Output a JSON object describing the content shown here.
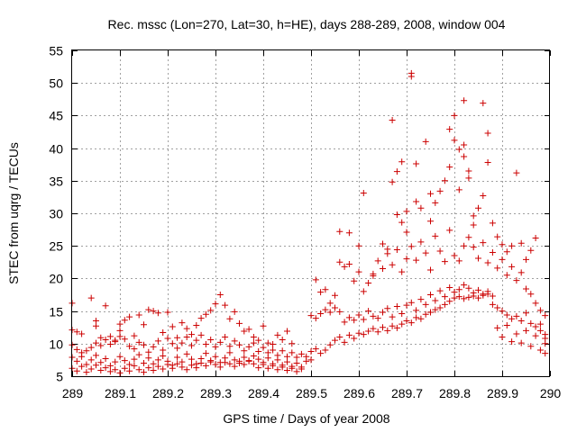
{
  "chart_data": {
    "type": "scatter",
    "title": "Rec. mssc (Lon=270, Lat=30, h=HE), days 288-289, 2008, window 004",
    "xlabel": "GPS time / Days of year 2008",
    "ylabel": "STEC from uqrg / TECUs",
    "xlim": [
      289,
      290
    ],
    "ylim": [
      5,
      55
    ],
    "x_ticks": [
      289,
      289.1,
      289.2,
      289.3,
      289.4,
      289.5,
      289.6,
      289.7,
      289.8,
      289.9,
      290
    ],
    "x_tick_labels": [
      "289",
      "289.1",
      "289.2",
      "289.3",
      "289.4",
      "289.5",
      "289.6",
      "289.7",
      "289.8",
      "289.9",
      "290"
    ],
    "y_ticks": [
      5,
      10,
      15,
      20,
      25,
      30,
      35,
      40,
      45,
      50,
      55
    ],
    "y_tick_labels": [
      "5",
      "10",
      "15",
      "20",
      "25",
      "30",
      "35",
      "40",
      "45",
      "50",
      "55"
    ],
    "grid": true,
    "marker": "+",
    "color": "#cc0000",
    "points": [
      [
        289.0,
        16.2
      ],
      [
        289.0,
        12.1
      ],
      [
        289.01,
        11.8
      ],
      [
        289.02,
        11.5
      ],
      [
        289.04,
        17.0
      ],
      [
        289.05,
        13.5
      ],
      [
        289.05,
        12.7
      ],
      [
        289.06,
        10.9
      ],
      [
        289.07,
        15.8
      ],
      [
        289.08,
        11.1
      ],
      [
        289.09,
        10.5
      ],
      [
        289.1,
        13.0
      ],
      [
        289.1,
        12.0
      ],
      [
        289.11,
        13.6
      ],
      [
        289.12,
        14.1
      ],
      [
        289.13,
        11.2
      ],
      [
        289.14,
        14.4
      ],
      [
        289.15,
        12.9
      ],
      [
        289.16,
        15.2
      ],
      [
        289.17,
        15.0
      ],
      [
        289.18,
        14.7
      ],
      [
        289.19,
        11.7
      ],
      [
        289.2,
        14.8
      ],
      [
        289.21,
        12.6
      ],
      [
        289.22,
        10.9
      ],
      [
        289.23,
        13.2
      ],
      [
        289.24,
        12.3
      ],
      [
        289.25,
        11.4
      ],
      [
        289.26,
        12.8
      ],
      [
        289.27,
        13.9
      ],
      [
        289.28,
        14.5
      ],
      [
        289.29,
        15.1
      ],
      [
        289.3,
        16.1
      ],
      [
        289.31,
        17.5
      ],
      [
        289.32,
        15.9
      ],
      [
        289.33,
        13.8
      ],
      [
        289.34,
        14.9
      ],
      [
        289.35,
        13.1
      ],
      [
        289.36,
        11.9
      ],
      [
        289.37,
        12.2
      ],
      [
        289.38,
        11.0
      ],
      [
        289.39,
        10.5
      ],
      [
        289.4,
        12.7
      ],
      [
        289.41,
        10.1
      ],
      [
        289.42,
        9.9
      ],
      [
        289.43,
        11.3
      ],
      [
        289.44,
        10.6
      ],
      [
        289.45,
        11.9
      ],
      [
        289.46,
        10.0
      ],
      [
        289.0,
        9.8
      ],
      [
        289.01,
        9.1
      ],
      [
        289.02,
        8.6
      ],
      [
        289.03,
        8.9
      ],
      [
        289.04,
        9.4
      ],
      [
        289.05,
        10.1
      ],
      [
        289.06,
        9.7
      ],
      [
        289.07,
        10.6
      ],
      [
        289.08,
        9.9
      ],
      [
        289.09,
        10.3
      ],
      [
        289.1,
        11.1
      ],
      [
        289.11,
        10.7
      ],
      [
        289.12,
        9.6
      ],
      [
        289.13,
        9.2
      ],
      [
        289.14,
        10.2
      ],
      [
        289.15,
        9.8
      ],
      [
        289.16,
        8.7
      ],
      [
        289.17,
        9.5
      ],
      [
        289.18,
        10.4
      ],
      [
        289.19,
        9.0
      ],
      [
        289.2,
        10.8
      ],
      [
        289.21,
        10.0
      ],
      [
        289.22,
        9.3
      ],
      [
        289.23,
        10.1
      ],
      [
        289.24,
        11.0
      ],
      [
        289.25,
        9.7
      ],
      [
        289.26,
        10.5
      ],
      [
        289.27,
        11.3
      ],
      [
        289.28,
        9.9
      ],
      [
        289.29,
        10.6
      ],
      [
        289.3,
        9.5
      ],
      [
        289.31,
        10.2
      ],
      [
        289.32,
        11.0
      ],
      [
        289.33,
        9.6
      ],
      [
        289.34,
        10.4
      ],
      [
        289.35,
        9.8
      ],
      [
        289.36,
        8.9
      ],
      [
        289.37,
        9.5
      ],
      [
        289.38,
        10.1
      ],
      [
        289.39,
        8.8
      ],
      [
        289.4,
        9.4
      ],
      [
        289.41,
        8.6
      ],
      [
        289.42,
        9.0
      ],
      [
        289.43,
        8.2
      ],
      [
        289.44,
        8.9
      ],
      [
        289.45,
        8.0
      ],
      [
        289.46,
        8.6
      ],
      [
        289.47,
        7.9
      ],
      [
        289.48,
        8.4
      ],
      [
        289.0,
        7.9
      ],
      [
        289.01,
        7.3
      ],
      [
        289.02,
        8.0
      ],
      [
        289.03,
        6.8
      ],
      [
        289.04,
        7.5
      ],
      [
        289.05,
        8.2
      ],
      [
        289.06,
        7.1
      ],
      [
        289.07,
        7.7
      ],
      [
        289.08,
        6.6
      ],
      [
        289.09,
        7.2
      ],
      [
        289.1,
        8.0
      ],
      [
        289.11,
        7.4
      ],
      [
        289.12,
        6.8
      ],
      [
        289.13,
        7.6
      ],
      [
        289.14,
        8.3
      ],
      [
        289.15,
        7.0
      ],
      [
        289.16,
        7.8
      ],
      [
        289.17,
        6.9
      ],
      [
        289.18,
        7.5
      ],
      [
        289.19,
        8.1
      ],
      [
        289.2,
        7.3
      ],
      [
        289.21,
        6.7
      ],
      [
        289.22,
        7.9
      ],
      [
        289.23,
        7.2
      ],
      [
        289.24,
        8.4
      ],
      [
        289.25,
        7.6
      ],
      [
        289.26,
        6.9
      ],
      [
        289.27,
        7.7
      ],
      [
        289.28,
        8.5
      ],
      [
        289.29,
        7.4
      ],
      [
        289.3,
        8.0
      ],
      [
        289.31,
        7.1
      ],
      [
        289.32,
        7.8
      ],
      [
        289.33,
        8.6
      ],
      [
        289.34,
        7.5
      ],
      [
        289.35,
        7.0
      ],
      [
        289.36,
        7.9
      ],
      [
        289.37,
        7.3
      ],
      [
        289.38,
        8.1
      ],
      [
        289.39,
        7.6
      ],
      [
        289.4,
        7.1
      ],
      [
        289.41,
        7.8
      ],
      [
        289.42,
        6.9
      ],
      [
        289.43,
        7.5
      ],
      [
        289.44,
        6.7
      ],
      [
        289.45,
        7.2
      ],
      [
        289.46,
        6.5
      ],
      [
        289.47,
        7.0
      ],
      [
        289.48,
        6.4
      ],
      [
        289.49,
        7.3
      ],
      [
        289.0,
        6.2
      ],
      [
        289.01,
        5.8
      ],
      [
        289.02,
        6.5
      ],
      [
        289.03,
        5.6
      ],
      [
        289.04,
        6.1
      ],
      [
        289.05,
        6.7
      ],
      [
        289.06,
        5.9
      ],
      [
        289.07,
        6.3
      ],
      [
        289.08,
        5.7
      ],
      [
        289.09,
        6.0
      ],
      [
        289.1,
        5.5
      ],
      [
        289.11,
        6.2
      ],
      [
        289.12,
        5.8
      ],
      [
        289.13,
        6.6
      ],
      [
        289.14,
        6.0
      ],
      [
        289.15,
        5.6
      ],
      [
        289.16,
        6.3
      ],
      [
        289.17,
        5.9
      ],
      [
        289.18,
        6.5
      ],
      [
        289.19,
        6.1
      ],
      [
        289.2,
        6.8
      ],
      [
        289.21,
        6.2
      ],
      [
        289.22,
        6.9
      ],
      [
        289.23,
        6.4
      ],
      [
        289.24,
        6.0
      ],
      [
        289.25,
        6.7
      ],
      [
        289.26,
        6.3
      ],
      [
        289.27,
        7.0
      ],
      [
        289.28,
        6.6
      ],
      [
        289.29,
        7.2
      ],
      [
        289.3,
        6.8
      ],
      [
        289.31,
        6.4
      ],
      [
        289.32,
        7.1
      ],
      [
        289.33,
        6.9
      ],
      [
        289.34,
        6.5
      ],
      [
        289.35,
        7.3
      ],
      [
        289.36,
        6.8
      ],
      [
        289.37,
        7.4
      ],
      [
        289.38,
        6.9
      ],
      [
        289.39,
        6.3
      ],
      [
        289.4,
        6.8
      ],
      [
        289.41,
        6.2
      ],
      [
        289.42,
        6.6
      ],
      [
        289.43,
        6.0
      ],
      [
        289.44,
        6.4
      ],
      [
        289.45,
        5.9
      ],
      [
        289.46,
        6.2
      ],
      [
        289.47,
        5.7
      ],
      [
        289.48,
        6.1
      ],
      [
        289.49,
        8.0
      ],
      [
        289.5,
        7.5
      ],
      [
        289.5,
        8.8
      ],
      [
        289.51,
        9.2
      ],
      [
        289.52,
        8.5
      ],
      [
        289.53,
        9.0
      ],
      [
        289.54,
        9.8
      ],
      [
        289.55,
        10.5
      ],
      [
        289.56,
        11.0
      ],
      [
        289.57,
        10.2
      ],
      [
        289.58,
        11.3
      ],
      [
        289.59,
        10.8
      ],
      [
        289.6,
        11.6
      ],
      [
        289.61,
        11.4
      ],
      [
        289.62,
        11.9
      ],
      [
        289.63,
        12.3
      ],
      [
        289.64,
        11.8
      ],
      [
        289.65,
        12.5
      ],
      [
        289.66,
        12.0
      ],
      [
        289.67,
        12.7
      ],
      [
        289.68,
        12.4
      ],
      [
        289.69,
        13.0
      ],
      [
        289.7,
        13.5
      ],
      [
        289.71,
        13.2
      ],
      [
        289.72,
        14.0
      ],
      [
        289.73,
        13.8
      ],
      [
        289.74,
        14.5
      ],
      [
        289.75,
        14.8
      ],
      [
        289.76,
        15.2
      ],
      [
        289.77,
        15.5
      ],
      [
        289.78,
        16.0
      ],
      [
        289.79,
        16.5
      ],
      [
        289.8,
        17.0
      ],
      [
        289.81,
        17.2
      ],
      [
        289.82,
        16.9
      ],
      [
        289.83,
        17.1
      ],
      [
        289.84,
        17.3
      ],
      [
        289.85,
        17.0
      ],
      [
        289.86,
        17.4
      ],
      [
        289.87,
        17.6
      ],
      [
        289.5,
        14.3
      ],
      [
        289.51,
        13.9
      ],
      [
        289.52,
        14.6
      ],
      [
        289.53,
        15.2
      ],
      [
        289.54,
        14.8
      ],
      [
        289.55,
        15.5
      ],
      [
        289.56,
        14.9
      ],
      [
        289.57,
        13.3
      ],
      [
        289.58,
        14.0
      ],
      [
        289.59,
        13.6
      ],
      [
        289.6,
        14.4
      ],
      [
        289.61,
        13.7
      ],
      [
        289.62,
        15.0
      ],
      [
        289.63,
        14.2
      ],
      [
        289.64,
        13.9
      ],
      [
        289.65,
        14.8
      ],
      [
        289.66,
        15.4
      ],
      [
        289.67,
        14.1
      ],
      [
        289.68,
        15.7
      ],
      [
        289.69,
        14.6
      ],
      [
        289.7,
        15.9
      ],
      [
        289.71,
        16.3
      ],
      [
        289.72,
        15.1
      ],
      [
        289.73,
        16.8
      ],
      [
        289.74,
        16.0
      ],
      [
        289.75,
        17.5
      ],
      [
        289.76,
        16.6
      ],
      [
        289.77,
        18.1
      ],
      [
        289.78,
        17.2
      ],
      [
        289.79,
        18.6
      ],
      [
        289.8,
        17.9
      ],
      [
        289.81,
        18.3
      ],
      [
        289.82,
        19.0
      ],
      [
        289.83,
        18.5
      ],
      [
        289.84,
        17.8
      ],
      [
        289.85,
        18.2
      ],
      [
        289.86,
        17.6
      ],
      [
        289.87,
        18.0
      ],
      [
        289.88,
        17.3
      ],
      [
        289.89,
        15.5
      ],
      [
        289.9,
        15.0
      ],
      [
        289.91,
        14.4
      ],
      [
        289.92,
        13.8
      ],
      [
        289.93,
        14.2
      ],
      [
        289.94,
        13.5
      ],
      [
        289.95,
        14.7
      ],
      [
        289.96,
        13.1
      ],
      [
        289.97,
        12.6
      ],
      [
        289.98,
        12.0
      ],
      [
        289.99,
        11.4
      ],
      [
        289.51,
        19.8
      ],
      [
        289.52,
        17.9
      ],
      [
        289.53,
        18.3
      ],
      [
        289.54,
        16.2
      ],
      [
        289.55,
        17.4
      ],
      [
        289.56,
        22.5
      ],
      [
        289.57,
        21.8
      ],
      [
        289.58,
        22.2
      ],
      [
        289.59,
        19.6
      ],
      [
        289.6,
        21.0
      ],
      [
        289.61,
        18.0
      ],
      [
        289.62,
        19.3
      ],
      [
        289.63,
        20.4
      ],
      [
        289.64,
        22.7
      ],
      [
        289.65,
        21.5
      ],
      [
        289.66,
        23.8
      ],
      [
        289.67,
        22.1
      ],
      [
        289.68,
        24.4
      ],
      [
        289.69,
        21.0
      ],
      [
        289.7,
        23.0
      ],
      [
        289.71,
        24.9
      ],
      [
        289.72,
        22.8
      ],
      [
        289.73,
        25.6
      ],
      [
        289.74,
        23.9
      ],
      [
        289.75,
        21.3
      ],
      [
        289.76,
        26.5
      ],
      [
        289.77,
        24.2
      ],
      [
        289.78,
        22.6
      ],
      [
        289.79,
        27.4
      ],
      [
        289.8,
        23.5
      ],
      [
        289.81,
        22.7
      ],
      [
        289.82,
        25.0
      ],
      [
        289.83,
        26.3
      ],
      [
        289.84,
        24.8
      ],
      [
        289.85,
        23.1
      ],
      [
        289.86,
        25.5
      ],
      [
        289.87,
        22.4
      ],
      [
        289.88,
        24.0
      ],
      [
        289.89,
        21.6
      ],
      [
        289.9,
        22.9
      ],
      [
        289.91,
        20.5
      ],
      [
        289.92,
        21.8
      ],
      [
        289.93,
        19.7
      ],
      [
        289.94,
        20.9
      ],
      [
        289.95,
        18.4
      ],
      [
        289.96,
        17.6
      ],
      [
        289.97,
        16.2
      ],
      [
        289.98,
        15.1
      ],
      [
        289.99,
        14.3
      ],
      [
        289.56,
        27.2
      ],
      [
        289.58,
        27.0
      ],
      [
        289.6,
        25.0
      ],
      [
        289.61,
        33.1
      ],
      [
        289.63,
        20.7
      ],
      [
        289.65,
        25.3
      ],
      [
        289.66,
        24.5
      ],
      [
        289.67,
        34.8
      ],
      [
        289.67,
        44.3
      ],
      [
        289.68,
        36.4
      ],
      [
        289.68,
        29.8
      ],
      [
        289.69,
        37.9
      ],
      [
        289.69,
        28.6
      ],
      [
        289.7,
        30.3
      ],
      [
        289.7,
        27.1
      ],
      [
        289.71,
        51.5
      ],
      [
        289.71,
        51.0
      ],
      [
        289.72,
        37.6
      ],
      [
        289.72,
        31.8
      ],
      [
        289.73,
        30.8
      ],
      [
        289.74,
        41.0
      ],
      [
        289.75,
        28.8
      ],
      [
        289.75,
        33.0
      ],
      [
        289.76,
        31.6
      ],
      [
        289.77,
        33.4
      ],
      [
        289.78,
        35.0
      ],
      [
        289.79,
        37.1
      ],
      [
        289.79,
        42.9
      ],
      [
        289.8,
        45.0
      ],
      [
        289.8,
        41.2
      ],
      [
        289.81,
        39.8
      ],
      [
        289.81,
        33.6
      ],
      [
        289.82,
        47.3
      ],
      [
        289.82,
        40.5
      ],
      [
        289.82,
        38.7
      ],
      [
        289.83,
        36.5
      ],
      [
        289.83,
        35.4
      ],
      [
        289.84,
        29.6
      ],
      [
        289.84,
        28.2
      ],
      [
        289.85,
        30.8
      ],
      [
        289.86,
        46.9
      ],
      [
        289.86,
        32.7
      ],
      [
        289.87,
        42.3
      ],
      [
        289.87,
        37.8
      ],
      [
        289.88,
        28.5
      ],
      [
        289.89,
        26.4
      ],
      [
        289.9,
        25.2
      ],
      [
        289.91,
        24.1
      ],
      [
        289.92,
        25.0
      ],
      [
        289.93,
        36.2
      ],
      [
        289.94,
        25.4
      ],
      [
        289.95,
        22.9
      ],
      [
        289.96,
        24.3
      ],
      [
        289.97,
        26.2
      ],
      [
        289.98,
        13.0
      ],
      [
        289.99,
        10.8
      ],
      [
        289.88,
        16.0
      ],
      [
        289.89,
        12.4
      ],
      [
        289.9,
        11.0
      ],
      [
        289.91,
        12.8
      ],
      [
        289.92,
        10.3
      ],
      [
        289.93,
        11.5
      ],
      [
        289.94,
        10.1
      ],
      [
        289.95,
        12.0
      ],
      [
        289.96,
        9.6
      ],
      [
        289.97,
        11.2
      ],
      [
        289.98,
        9.0
      ],
      [
        289.99,
        8.5
      ],
      [
        289.99,
        10.0
      ]
    ]
  }
}
